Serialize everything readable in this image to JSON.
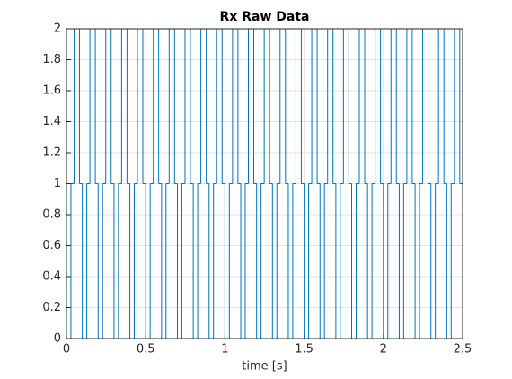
{
  "chart_data": {
    "type": "stairs",
    "title": "Rx Raw Data",
    "x_label": "time [s]",
    "color": "#0072bd",
    "grid": true,
    "xlim": [
      0,
      2.5
    ],
    "xticks": [
      0,
      0.5,
      1,
      1.5,
      2,
      2.5
    ],
    "ylim": [
      0,
      2
    ],
    "yticks": [
      0,
      0.2,
      0.4,
      0.6,
      0.8,
      1,
      1.2,
      1.4,
      1.6,
      1.8,
      2
    ],
    "x": [
      0,
      0.028,
      0.048,
      0.082,
      0.1,
      0.128,
      0.148,
      0.182,
      0.2,
      0.228,
      0.248,
      0.282,
      0.3,
      0.328,
      0.348,
      0.382,
      0.4,
      0.428,
      0.448,
      0.482,
      0.5,
      0.528,
      0.548,
      0.582,
      0.6,
      0.628,
      0.648,
      0.682,
      0.7,
      0.728,
      0.748,
      0.782,
      0.8,
      0.828,
      0.848,
      0.882,
      0.9,
      0.928,
      0.948,
      0.982,
      1,
      1.028,
      1.048,
      1.082,
      1.1,
      1.128,
      1.148,
      1.182,
      1.2,
      1.228,
      1.248,
      1.282,
      1.3,
      1.328,
      1.348,
      1.382,
      1.4,
      1.428,
      1.448,
      1.482,
      1.5,
      1.528,
      1.548,
      1.582,
      1.6,
      1.628,
      1.648,
      1.682,
      1.7,
      1.728,
      1.748,
      1.782,
      1.8,
      1.828,
      1.848,
      1.882,
      1.9,
      1.928,
      1.948,
      1.982,
      2,
      2.028,
      2.048,
      2.082,
      2.1,
      2.128,
      2.148,
      2.182,
      2.2,
      2.228,
      2.248,
      2.282,
      2.3,
      2.328,
      2.348,
      2.382,
      2.4,
      2.428,
      2.448,
      2.482
    ],
    "values": [
      0,
      1,
      2,
      1,
      0,
      1,
      2,
      1,
      0,
      1,
      2,
      1,
      0,
      1,
      2,
      1,
      0,
      1,
      2,
      1,
      0,
      1,
      2,
      1,
      0,
      1,
      2,
      1,
      0,
      1,
      2,
      1,
      0,
      1,
      2,
      1,
      0,
      1,
      2,
      1,
      0,
      1,
      2,
      1,
      0,
      1,
      2,
      1,
      0,
      1,
      2,
      1,
      0,
      1,
      2,
      1,
      0,
      1,
      2,
      1,
      0,
      1,
      2,
      1,
      0,
      1,
      2,
      1,
      0,
      1,
      2,
      1,
      0,
      1,
      2,
      1,
      0,
      1,
      2,
      1,
      0,
      1,
      2,
      1,
      0,
      1,
      2,
      1,
      0,
      1,
      2,
      1,
      0,
      1,
      2,
      1,
      0,
      1,
      2,
      1
    ]
  }
}
